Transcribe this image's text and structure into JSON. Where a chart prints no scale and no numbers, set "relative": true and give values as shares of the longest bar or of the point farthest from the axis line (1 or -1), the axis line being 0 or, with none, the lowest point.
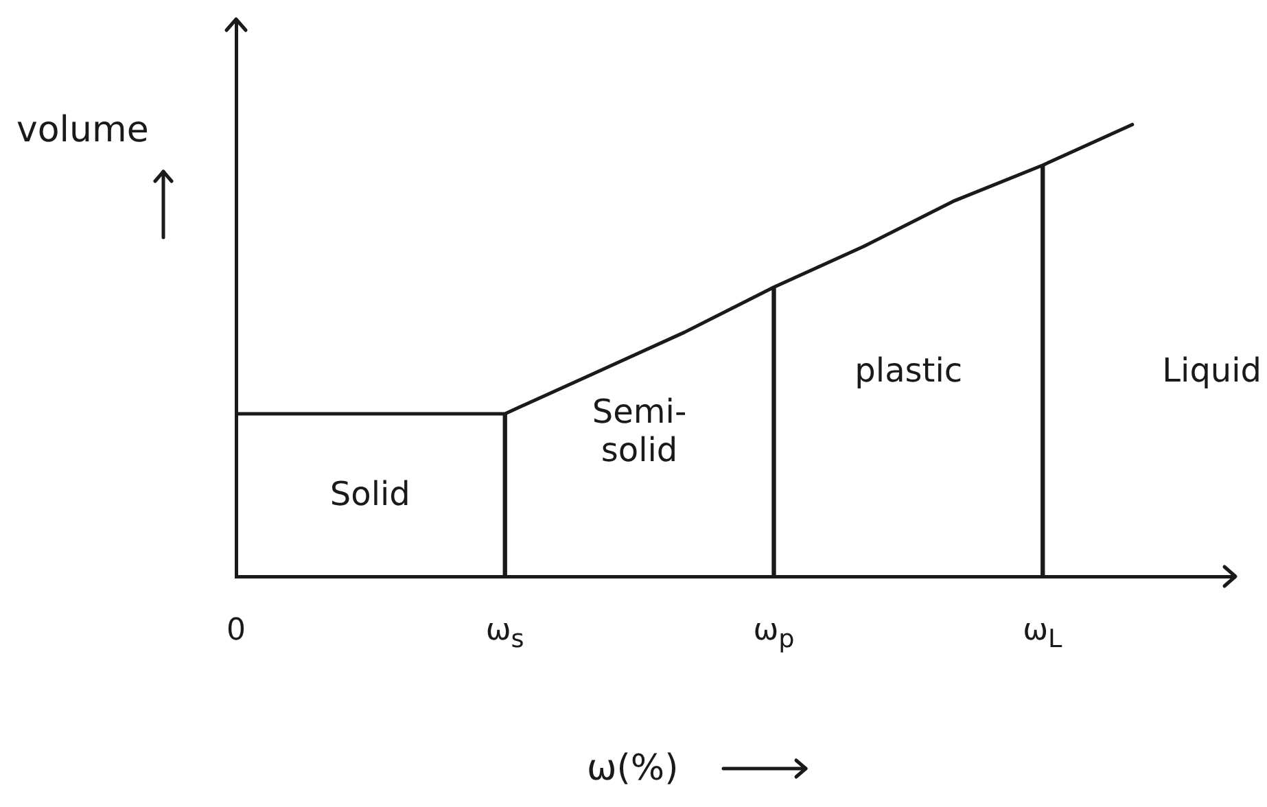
{
  "chart_data": {
    "type": "line",
    "xlabel": "ω(%)",
    "ylabel": "volume",
    "categories": [
      "0",
      null,
      null,
      "ω$_{s}$",
      null,
      null,
      "ω$_{p}$",
      null,
      null,
      "ω$_{L}$",
      null
    ],
    "relative": true,
    "series": [
      {
        "color": "#1a1a1a",
        "values": [
          0.36,
          0.36,
          0.36,
          0.36,
          0.45,
          0.54,
          0.64,
          0.73,
          0.83,
          0.91,
          1
        ]
      },
      {
        "type": "bar",
        "color": "#1a1a1a",
        "values": [
          null,
          null,
          null,
          0.36,
          null,
          null,
          0.64,
          null,
          null,
          0.91,
          null
        ]
      }
    ],
    "annotations": [
      "Solid",
      "Semi-solid",
      "plastic",
      "Liquid"
    ],
    "grid": false,
    "legend": false
  }
}
